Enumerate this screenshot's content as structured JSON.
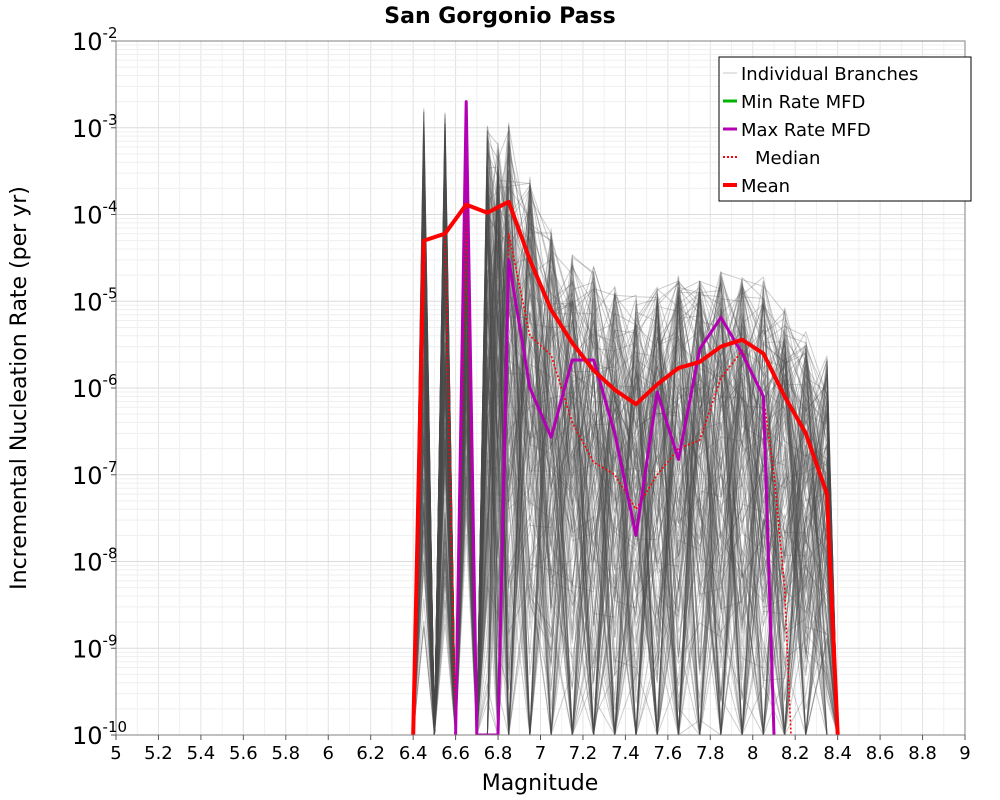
{
  "chart_data": {
    "type": "line",
    "title": "San Gorgonio Pass",
    "xlabel": "Magnitude",
    "ylabel": "Incremental Nucleation Rate (per yr)",
    "xlim": [
      5,
      9
    ],
    "ylim": [
      1e-10,
      0.01
    ],
    "yscale": "log",
    "grid": true,
    "legend_position": "top-right",
    "x_ticks": [
      5,
      5.2,
      5.4,
      5.6,
      5.8,
      6,
      6.2,
      6.4,
      6.6,
      6.8,
      7,
      7.2,
      7.4,
      7.6,
      7.8,
      8,
      8.2,
      8.4,
      8.6,
      8.8,
      9
    ],
    "x_tick_labels": [
      "5",
      "5.2",
      "5.4",
      "5.6",
      "5.8",
      "6",
      "6.2",
      "6.4",
      "6.6",
      "6.8",
      "7",
      "7.2",
      "7.4",
      "7.6",
      "7.8",
      "8",
      "8.2",
      "8.4",
      "8.6",
      "8.8",
      "9"
    ],
    "y_tick_exponents": [
      -2,
      -3,
      -4,
      -5,
      -6,
      -7,
      -8,
      -9,
      -10
    ],
    "y_tick_base": "10",
    "y_tick_labels": [
      "-2",
      "-3",
      "-4",
      "-5",
      "-6",
      "-7",
      "-8",
      "-9",
      "-10"
    ],
    "legend": [
      {
        "label": "Individual Branches",
        "color": "#c8c8c8",
        "style": "thin"
      },
      {
        "label": "Min Rate MFD",
        "color": "#00b400",
        "style": "solid"
      },
      {
        "label": "Max Rate MFD",
        "color": "#b400b4",
        "style": "solid"
      },
      {
        "label": "Median",
        "color": "#ff0000",
        "style": "dotted"
      },
      {
        "label": "Mean",
        "color": "#ff0000",
        "style": "thick"
      }
    ],
    "series": [
      {
        "name": "Mean",
        "x": [
          6.4,
          6.45,
          6.55,
          6.65,
          6.75,
          6.85,
          6.95,
          7.05,
          7.15,
          7.25,
          7.35,
          7.45,
          7.55,
          7.65,
          7.75,
          7.85,
          7.95,
          8.05,
          8.15,
          8.25,
          8.35,
          8.4
        ],
        "y": [
          1e-10,
          5e-05,
          6e-05,
          0.00013,
          0.000105,
          0.00014,
          3e-05,
          8e-06,
          3.3e-06,
          1.6e-06,
          9.5e-07,
          6.5e-07,
          1.1e-06,
          1.7e-06,
          2e-06,
          3e-06,
          3.6e-06,
          2.5e-06,
          8e-07,
          3e-07,
          6e-08,
          1e-10
        ]
      },
      {
        "name": "Median",
        "x": [
          6.4,
          6.45,
          6.55,
          6.6,
          6.65,
          6.7,
          6.75,
          6.8,
          6.85,
          6.95,
          7.05,
          7.15,
          7.25,
          7.35,
          7.45,
          7.55,
          7.65,
          7.75,
          7.85,
          7.95,
          8.05,
          8.1,
          8.15,
          8.18
        ],
        "y": [
          1e-10,
          5e-05,
          6e-05,
          1e-10,
          0.00013,
          1e-10,
          1e-10,
          1e-10,
          6e-05,
          4e-06,
          2.4e-06,
          4e-07,
          1.4e-07,
          1e-07,
          4e-08,
          1e-07,
          2e-07,
          2.5e-07,
          1.3e-06,
          2.7e-06,
          8e-07,
          1e-07,
          5e-09,
          1e-10
        ]
      },
      {
        "name": "Max Rate MFD",
        "x": [
          6.6,
          6.65,
          6.7,
          6.8,
          6.85,
          6.95,
          7.05,
          7.15,
          7.25,
          7.35,
          7.45,
          7.55,
          7.65,
          7.75,
          7.85,
          7.95,
          8.05,
          8.1
        ],
        "y": [
          1e-10,
          0.002,
          1e-10,
          1e-10,
          3e-05,
          1e-06,
          2.7e-07,
          2.1e-06,
          2.1e-06,
          3e-07,
          2e-08,
          9e-07,
          1.5e-07,
          2.8e-06,
          6.5e-06,
          2.5e-06,
          8e-07,
          1e-10
        ]
      },
      {
        "name": "Min Rate MFD",
        "x": [],
        "y": []
      }
    ],
    "branch_envelope": {
      "name": "Individual Branches",
      "x": [
        6.4,
        6.45,
        6.5,
        6.55,
        6.6,
        6.65,
        6.7,
        6.75,
        6.8,
        6.85,
        6.95,
        7.05,
        7.15,
        7.25,
        7.35,
        7.45,
        7.55,
        7.65,
        7.75,
        7.85,
        7.95,
        8.05,
        8.15,
        8.25,
        8.35,
        8.4
      ],
      "upper": [
        1e-10,
        0.0018,
        1e-10,
        0.0015,
        1e-10,
        0.002,
        1e-10,
        0.0012,
        0.0008,
        0.0012,
        0.0003,
        7e-05,
        3.5e-05,
        2.5e-05,
        1.5e-05,
        1.2e-05,
        1.5e-05,
        2e-05,
        2e-05,
        2.5e-05,
        2e-05,
        2e-05,
        1e-05,
        5e-06,
        2.5e-06,
        1e-10
      ],
      "lower": [
        1e-10,
        1e-09,
        1e-10,
        1e-09,
        1e-10,
        5e-09,
        1e-10,
        1e-10,
        1e-10,
        1e-10,
        1e-10,
        1e-10,
        1e-10,
        1e-10,
        1e-10,
        1e-10,
        1e-10,
        1e-10,
        1e-10,
        1e-10,
        1e-10,
        1e-10,
        1e-10,
        1e-10,
        1e-10,
        1e-10
      ]
    }
  }
}
